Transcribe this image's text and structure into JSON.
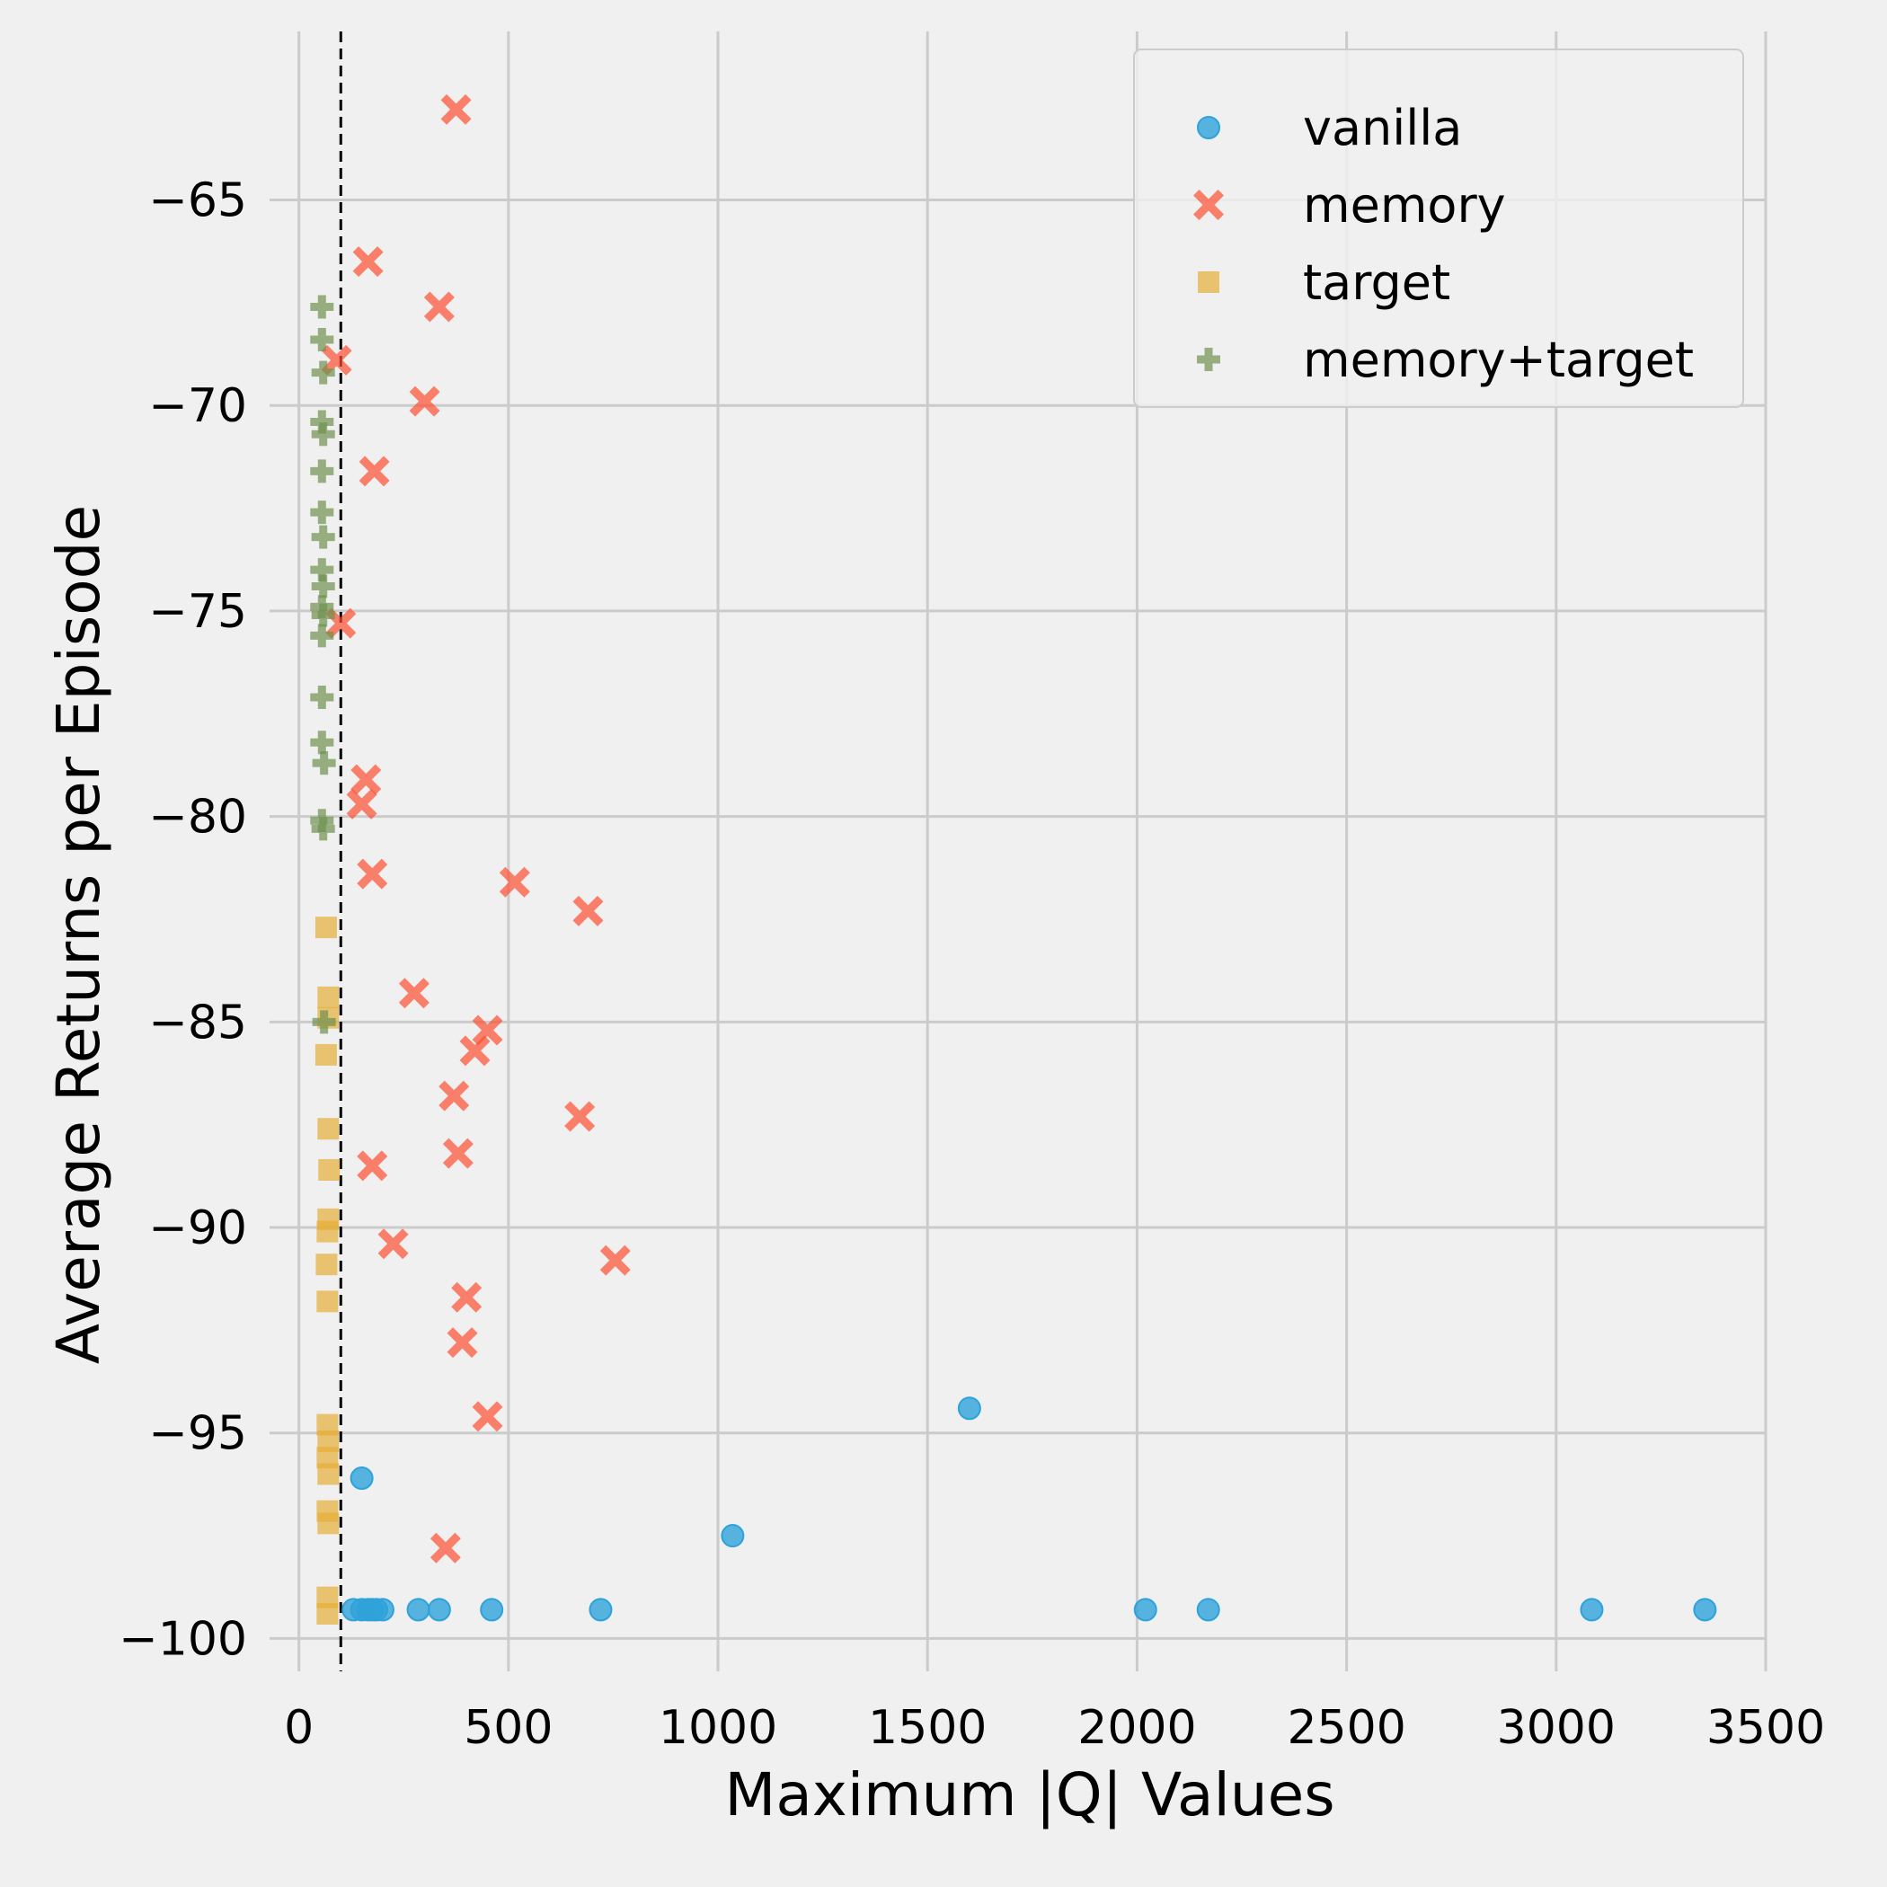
{
  "chart_data": {
    "type": "scatter",
    "xlabel": "Maximum |Q| Values",
    "ylabel": "Average Returns per Episode",
    "xlim": [
      -70,
      3500
    ],
    "ylim": [
      -100.8,
      -60.9
    ],
    "x_ticks": [
      0,
      500,
      1000,
      1500,
      2000,
      2500,
      3000,
      3500
    ],
    "y_ticks": [
      -100,
      -95,
      -90,
      -85,
      -80,
      -75,
      -70,
      -65
    ],
    "x_tick_labels": [
      "0",
      "500",
      "1000",
      "1500",
      "2000",
      "2500",
      "3000",
      "3500"
    ],
    "y_tick_labels": [
      "−100",
      "−95",
      "−90",
      "−85",
      "−80",
      "−75",
      "−70",
      "−65"
    ],
    "grid": true,
    "legend_position": "top-right",
    "reference_line": {
      "x": 100,
      "style": "dashed",
      "color": "#000000"
    },
    "series": [
      {
        "name": "vanilla",
        "marker": "circle",
        "color": "#30a2da",
        "points": [
          [
            1600,
            -94.4
          ],
          [
            150,
            -96.1
          ],
          [
            1035,
            -97.5
          ],
          [
            2020,
            -99.3
          ],
          [
            2170,
            -99.3
          ],
          [
            3085,
            -99.3
          ],
          [
            3355,
            -99.3
          ],
          [
            130,
            -99.3
          ],
          [
            150,
            -99.3
          ],
          [
            165,
            -99.3
          ],
          [
            175,
            -99.3
          ],
          [
            185,
            -99.3
          ],
          [
            200,
            -99.3
          ],
          [
            285,
            -99.3
          ],
          [
            335,
            -99.3
          ],
          [
            460,
            -99.3
          ],
          [
            720,
            -99.3
          ]
        ]
      },
      {
        "name": "memory",
        "marker": "x",
        "color": "#fc4f30",
        "points": [
          [
            375,
            -62.8
          ],
          [
            165,
            -66.5
          ],
          [
            335,
            -67.6
          ],
          [
            90,
            -68.9
          ],
          [
            300,
            -69.9
          ],
          [
            180,
            -71.6
          ],
          [
            100,
            -75.3
          ],
          [
            160,
            -79.1
          ],
          [
            150,
            -79.7
          ],
          [
            175,
            -81.4
          ],
          [
            515,
            -81.6
          ],
          [
            690,
            -82.3
          ],
          [
            275,
            -84.3
          ],
          [
            450,
            -85.2
          ],
          [
            420,
            -85.7
          ],
          [
            370,
            -86.8
          ],
          [
            670,
            -87.3
          ],
          [
            380,
            -88.2
          ],
          [
            175,
            -88.5
          ],
          [
            225,
            -90.4
          ],
          [
            755,
            -90.8
          ],
          [
            400,
            -91.7
          ],
          [
            390,
            -92.8
          ],
          [
            450,
            -94.6
          ],
          [
            350,
            -97.8
          ]
        ]
      },
      {
        "name": "target",
        "marker": "square",
        "color": "#e5ae38",
        "points": [
          [
            65,
            -82.7
          ],
          [
            70,
            -84.4
          ],
          [
            70,
            -84.9
          ],
          [
            65,
            -85.8
          ],
          [
            70,
            -87.6
          ],
          [
            72,
            -88.6
          ],
          [
            70,
            -89.8
          ],
          [
            68,
            -90.1
          ],
          [
            66,
            -90.9
          ],
          [
            68,
            -91.8
          ],
          [
            68,
            -94.8
          ],
          [
            70,
            -95.2
          ],
          [
            68,
            -95.6
          ],
          [
            70,
            -96.0
          ],
          [
            68,
            -96.9
          ],
          [
            70,
            -97.2
          ],
          [
            68,
            -99.0
          ],
          [
            68,
            -99.4
          ]
        ]
      },
      {
        "name": "memory+target",
        "marker": "plus",
        "color": "#6d904f",
        "points": [
          [
            55,
            -67.6
          ],
          [
            55,
            -68.4
          ],
          [
            58,
            -69.2
          ],
          [
            55,
            -70.4
          ],
          [
            58,
            -70.7
          ],
          [
            55,
            -71.6
          ],
          [
            55,
            -72.6
          ],
          [
            58,
            -73.2
          ],
          [
            55,
            -74.0
          ],
          [
            58,
            -74.4
          ],
          [
            55,
            -74.9
          ],
          [
            58,
            -75.1
          ],
          [
            55,
            -75.6
          ],
          [
            55,
            -77.1
          ],
          [
            55,
            -78.2
          ],
          [
            60,
            -78.7
          ],
          [
            55,
            -80.1
          ],
          [
            58,
            -80.3
          ],
          [
            60,
            -85.0
          ]
        ]
      }
    ]
  }
}
